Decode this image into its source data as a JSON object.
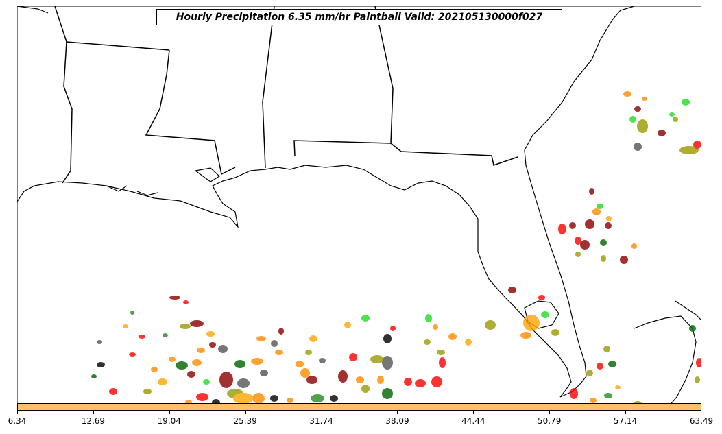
{
  "map": {
    "title": "Hourly Precipitation 6.35 mm/hr Paintball Valid: 202105130000f027",
    "colorbar": {
      "color": "#ffc068",
      "ticks": [
        "6.34",
        "12.69",
        "19.04",
        "25.39",
        "31.74",
        "38.09",
        "44.44",
        "50.79",
        "57.14",
        "63.49"
      ]
    },
    "member_colors": [
      "#ff0000",
      "#8b0000",
      "#228b22",
      "#006400",
      "#ff8c00",
      "#ffa500",
      "#9a9a00",
      "#000000",
      "#22dd22",
      "#555555"
    ],
    "region": "U.S. Gulf Coast and Florida"
  }
}
